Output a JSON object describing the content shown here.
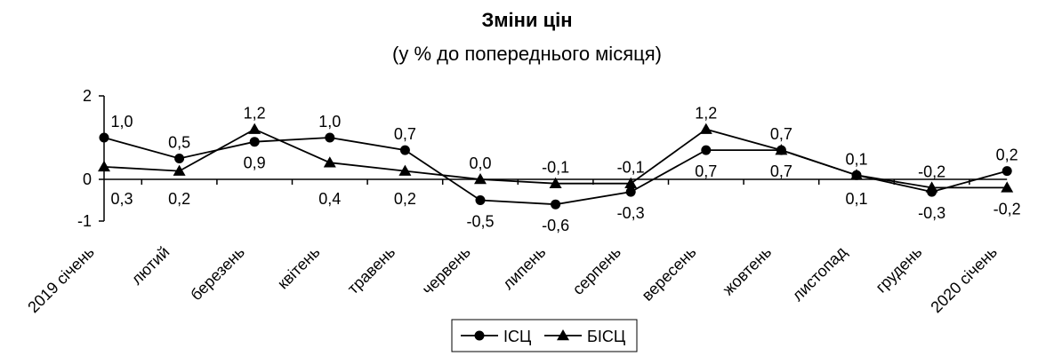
{
  "chart_data": {
    "type": "line",
    "title": "Зміни цін",
    "subtitle": "(у % до попереднього місяця)",
    "categories": [
      "2019 січень",
      "лютий",
      "березень",
      "квітень",
      "травень",
      "червень",
      "липень",
      "серпень",
      "вересень",
      "жовтень",
      "листопад",
      "грудень",
      "2020 січень"
    ],
    "ylim": [
      -1,
      2
    ],
    "yticks": [
      "2",
      "0",
      "-1"
    ],
    "ytick_values": [
      2,
      0,
      -1
    ],
    "legend_position": "bottom",
    "series": [
      {
        "name": "ІСЦ",
        "marker": "circle",
        "values": [
          1.0,
          0.5,
          0.9,
          1.0,
          0.7,
          -0.5,
          -0.6,
          -0.3,
          0.7,
          0.7,
          0.1,
          -0.3,
          0.2
        ],
        "labels": [
          "1,0",
          "0,5",
          "0,9",
          "1,0",
          "0,7",
          "-0,5",
          "-0,6",
          "-0,3",
          "0,7",
          "0,7",
          "0,1",
          "-0,3",
          "0,2"
        ]
      },
      {
        "name": "БІСЦ",
        "marker": "triangle",
        "values": [
          0.3,
          0.2,
          1.2,
          0.4,
          0.2,
          0.0,
          -0.1,
          -0.1,
          1.2,
          0.7,
          0.1,
          -0.2,
          -0.2
        ],
        "labels": [
          "0,3",
          "0,2",
          "1,2",
          "0,4",
          "0,2",
          "0,0",
          "-0,1",
          "-0,1",
          "1,2",
          "0,7",
          "0,1",
          "-0,2",
          "-0,2"
        ]
      }
    ]
  }
}
